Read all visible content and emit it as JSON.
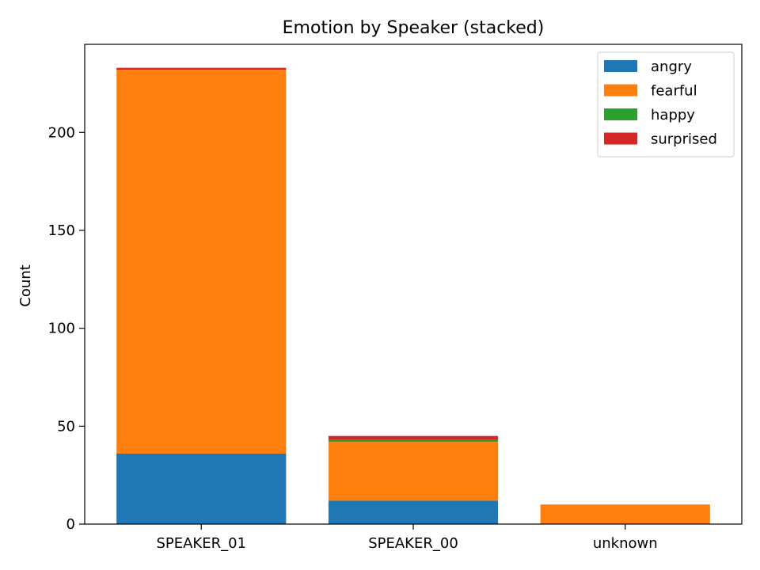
{
  "chart_data": {
    "type": "bar",
    "stacked": true,
    "title": "Emotion by Speaker (stacked)",
    "xlabel": "",
    "ylabel": "Count",
    "categories": [
      "SPEAKER_01",
      "SPEAKER_00",
      "unknown"
    ],
    "series": [
      {
        "name": "angry",
        "color": "#1f77b4",
        "values": [
          36,
          12,
          0
        ]
      },
      {
        "name": "fearful",
        "color": "#ff7f0e",
        "values": [
          196,
          30,
          10
        ]
      },
      {
        "name": "happy",
        "color": "#2ca02c",
        "values": [
          0,
          1,
          0
        ]
      },
      {
        "name": "surprised",
        "color": "#d62728",
        "values": [
          1,
          2,
          0
        ]
      }
    ],
    "ylim": [
      0,
      245
    ],
    "yticks": [
      0,
      50,
      100,
      150,
      200
    ],
    "grid": false,
    "legend_position": "top-right"
  }
}
